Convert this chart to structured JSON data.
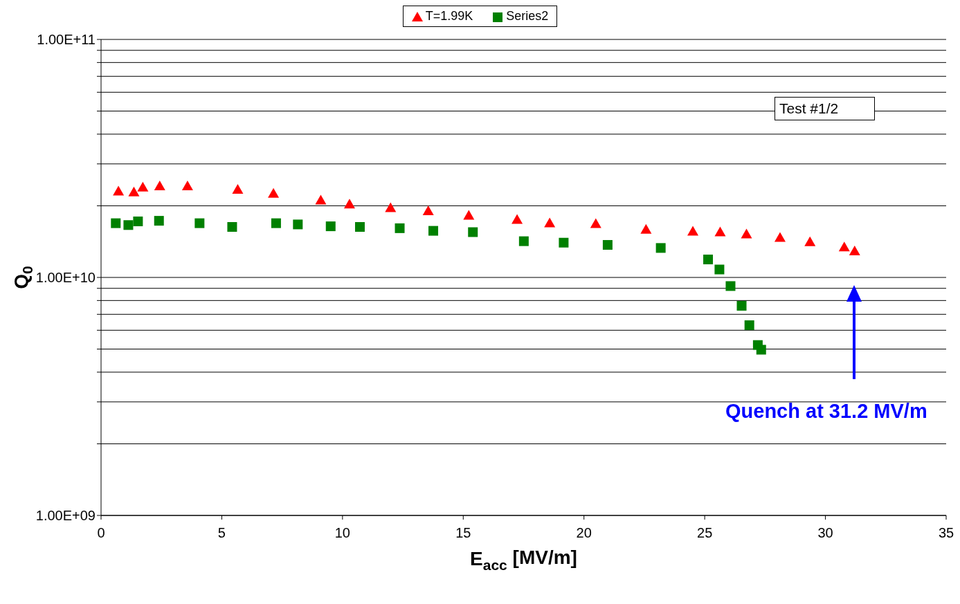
{
  "chart_data": {
    "type": "scatter",
    "xlabel": "E$_{acc}$ [MV/m]",
    "ylabel": "Q$_{0}$",
    "log": "y",
    "grid": "y",
    "legend": "top",
    "xlim": [
      0,
      35
    ],
    "xticks": [
      0,
      5,
      10,
      15,
      20,
      25,
      30,
      35
    ],
    "ylim": [
      1000000000,
      100000000000
    ],
    "yticks": [
      {
        "value": 1000000000,
        "label": "1.00E+09"
      },
      {
        "value": 2000000000,
        "label": null
      },
      {
        "value": 3000000000,
        "label": null
      },
      {
        "value": 4000000000,
        "label": null
      },
      {
        "value": 5000000000,
        "label": null
      },
      {
        "value": 6000000000,
        "label": null
      },
      {
        "value": 7000000000,
        "label": null
      },
      {
        "value": 8000000000,
        "label": null
      },
      {
        "value": 9000000000,
        "label": null
      },
      {
        "value": 10000000000,
        "label": "1.00E+10"
      },
      {
        "value": 20000000000,
        "label": null
      },
      {
        "value": 30000000000,
        "label": null
      },
      {
        "value": 40000000000,
        "label": null
      },
      {
        "value": 50000000000,
        "label": null
      },
      {
        "value": 60000000000,
        "label": null
      },
      {
        "value": 70000000000,
        "label": null
      },
      {
        "value": 80000000000,
        "label": null
      },
      {
        "value": 90000000000,
        "label": null
      },
      {
        "value": 100000000000,
        "label": "1.00E+11"
      }
    ],
    "series": [
      {
        "name": "T=1.99K",
        "color": "#ff0000",
        "marker": "triangle",
        "x": [
          0.72,
          1.36,
          1.73,
          2.43,
          3.58,
          5.66,
          7.14,
          9.1,
          10.29,
          11.99,
          13.55,
          15.23,
          17.23,
          18.58,
          20.49,
          22.57,
          24.51,
          25.64,
          26.73,
          28.12,
          29.36,
          30.78,
          31.21
        ],
        "values": [
          23000000000,
          22800000000,
          23900000000,
          24200000000,
          24200000000,
          23400000000,
          22500000000,
          21100000000,
          20300000000,
          19600000000,
          19000000000,
          18200000000,
          17500000000,
          16900000000,
          16800000000,
          15900000000,
          15600000000,
          15500000000,
          15200000000,
          14700000000,
          14100000000,
          13400000000,
          12900000000
        ]
      },
      {
        "name": "Series2",
        "color": "#008000",
        "marker": "square",
        "x": [
          0.61,
          1.13,
          1.53,
          2.4,
          4.08,
          5.43,
          7.25,
          8.15,
          9.51,
          10.72,
          12.37,
          13.76,
          15.4,
          17.51,
          19.16,
          20.98,
          23.18,
          25.14,
          25.61,
          26.07,
          26.53,
          26.85,
          27.2,
          27.34
        ],
        "values": [
          16900000000,
          16600000000,
          17200000000,
          17300000000,
          16900000000,
          16300000000,
          16900000000,
          16700000000,
          16400000000,
          16300000000,
          16100000000,
          15700000000,
          15500000000,
          14200000000,
          14000000000,
          13700000000,
          13300000000,
          11900000000,
          10800000000,
          9200000000,
          7600000000,
          6300000000,
          5200000000,
          4970000000
        ]
      }
    ],
    "annotations": [
      "Test #1/2",
      "Quench at 31.2 MV/m"
    ]
  }
}
